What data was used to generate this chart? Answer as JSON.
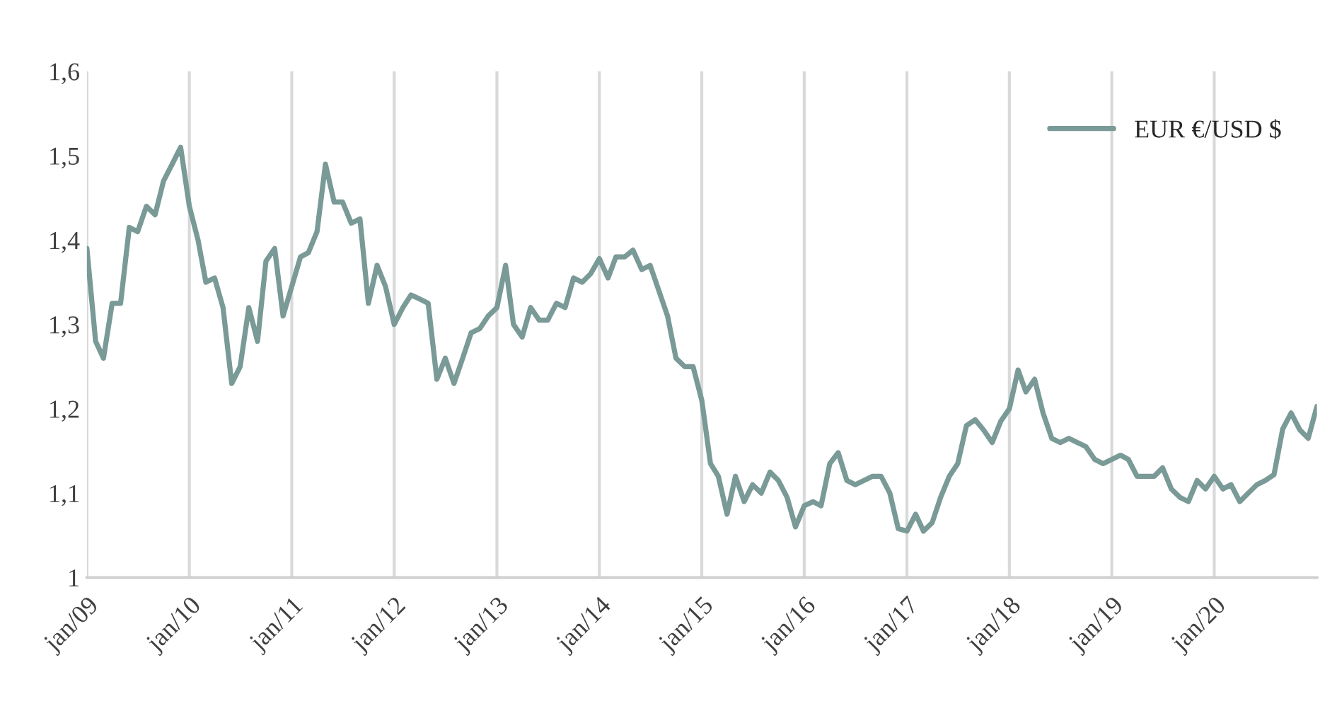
{
  "chart_data": {
    "type": "line",
    "x": [
      "2009-01",
      "2009-02",
      "2009-03",
      "2009-04",
      "2009-05",
      "2009-06",
      "2009-07",
      "2009-08",
      "2009-09",
      "2009-10",
      "2009-11",
      "2009-12",
      "2010-01",
      "2010-02",
      "2010-03",
      "2010-04",
      "2010-05",
      "2010-06",
      "2010-07",
      "2010-08",
      "2010-09",
      "2010-10",
      "2010-11",
      "2010-12",
      "2011-01",
      "2011-02",
      "2011-03",
      "2011-04",
      "2011-05",
      "2011-06",
      "2011-07",
      "2011-08",
      "2011-09",
      "2011-10",
      "2011-11",
      "2011-12",
      "2012-01",
      "2012-02",
      "2012-03",
      "2012-04",
      "2012-05",
      "2012-06",
      "2012-07",
      "2012-08",
      "2012-09",
      "2012-10",
      "2012-11",
      "2012-12",
      "2013-01",
      "2013-02",
      "2013-03",
      "2013-04",
      "2013-05",
      "2013-06",
      "2013-07",
      "2013-08",
      "2013-09",
      "2013-10",
      "2013-11",
      "2013-12",
      "2014-01",
      "2014-02",
      "2014-03",
      "2014-04",
      "2014-05",
      "2014-06",
      "2014-07",
      "2014-08",
      "2014-09",
      "2014-10",
      "2014-11",
      "2014-12",
      "2015-01",
      "2015-02",
      "2015-03",
      "2015-04",
      "2015-05",
      "2015-06",
      "2015-07",
      "2015-08",
      "2015-09",
      "2015-10",
      "2015-11",
      "2015-12",
      "2016-01",
      "2016-02",
      "2016-03",
      "2016-04",
      "2016-05",
      "2016-06",
      "2016-07",
      "2016-08",
      "2016-09",
      "2016-10",
      "2016-11",
      "2016-12",
      "2017-01",
      "2017-02",
      "2017-03",
      "2017-04",
      "2017-05",
      "2017-06",
      "2017-07",
      "2017-08",
      "2017-09",
      "2017-10",
      "2017-11",
      "2017-12",
      "2018-01",
      "2018-02",
      "2018-03",
      "2018-04",
      "2018-05",
      "2018-06",
      "2018-07",
      "2018-08",
      "2018-09",
      "2018-10",
      "2018-11",
      "2018-12",
      "2019-01",
      "2019-02",
      "2019-03",
      "2019-04",
      "2019-05",
      "2019-06",
      "2019-07",
      "2019-08",
      "2019-09",
      "2019-10",
      "2019-11",
      "2019-12",
      "2020-01",
      "2020-02",
      "2020-03",
      "2020-04",
      "2020-05",
      "2020-06",
      "2020-07",
      "2020-08",
      "2020-09",
      "2020-10",
      "2020-11",
      "2020-12",
      "2021-01"
    ],
    "series": [
      {
        "name": "EUR €/USD $",
        "color": "#7a9a97",
        "values": [
          1.39,
          1.28,
          1.26,
          1.325,
          1.325,
          1.415,
          1.41,
          1.44,
          1.43,
          1.47,
          1.49,
          1.51,
          1.44,
          1.4,
          1.35,
          1.355,
          1.32,
          1.23,
          1.25,
          1.32,
          1.28,
          1.375,
          1.39,
          1.31,
          1.345,
          1.38,
          1.385,
          1.41,
          1.49,
          1.445,
          1.445,
          1.42,
          1.425,
          1.325,
          1.37,
          1.345,
          1.3,
          1.32,
          1.335,
          1.33,
          1.325,
          1.235,
          1.26,
          1.23,
          1.26,
          1.29,
          1.295,
          1.31,
          1.32,
          1.37,
          1.3,
          1.285,
          1.32,
          1.305,
          1.305,
          1.325,
          1.32,
          1.355,
          1.35,
          1.36,
          1.378,
          1.355,
          1.38,
          1.38,
          1.388,
          1.365,
          1.37,
          1.34,
          1.31,
          1.26,
          1.25,
          1.25,
          1.21,
          1.135,
          1.12,
          1.075,
          1.12,
          1.09,
          1.11,
          1.1,
          1.125,
          1.115,
          1.095,
          1.06,
          1.085,
          1.09,
          1.085,
          1.135,
          1.148,
          1.115,
          1.11,
          1.115,
          1.12,
          1.12,
          1.1,
          1.058,
          1.055,
          1.075,
          1.055,
          1.065,
          1.095,
          1.12,
          1.135,
          1.18,
          1.187,
          1.175,
          1.16,
          1.185,
          1.2,
          1.246,
          1.22,
          1.235,
          1.195,
          1.165,
          1.16,
          1.165,
          1.16,
          1.155,
          1.14,
          1.135,
          1.14,
          1.145,
          1.14,
          1.12,
          1.12,
          1.12,
          1.13,
          1.105,
          1.095,
          1.09,
          1.115,
          1.105,
          1.12,
          1.105,
          1.11,
          1.09,
          1.1,
          1.11,
          1.115,
          1.122,
          1.176,
          1.195,
          1.175,
          1.165,
          1.203
        ]
      }
    ],
    "xlim": [
      "2009-01",
      "2021-01"
    ],
    "xticks": [
      {
        "value": "2009-01",
        "label": "jan/09"
      },
      {
        "value": "2010-01",
        "label": "jan/10"
      },
      {
        "value": "2011-01",
        "label": "jan/11"
      },
      {
        "value": "2012-01",
        "label": "jan/12"
      },
      {
        "value": "2013-01",
        "label": "jan/13"
      },
      {
        "value": "2014-01",
        "label": "jan/14"
      },
      {
        "value": "2015-01",
        "label": "jan/15"
      },
      {
        "value": "2016-01",
        "label": "jan/16"
      },
      {
        "value": "2017-01",
        "label": "jan/17"
      },
      {
        "value": "2018-01",
        "label": "jan/18"
      },
      {
        "value": "2019-01",
        "label": "jan/19"
      },
      {
        "value": "2020-01",
        "label": "jan/20"
      }
    ],
    "ylim": [
      1,
      1.6
    ],
    "yticks": [
      1,
      {
        "value": 1.1,
        "label": "1,1"
      },
      {
        "value": 1.2,
        "label": "1,2"
      },
      {
        "value": 1.3,
        "label": "1,3"
      },
      {
        "value": 1.4,
        "label": "1,4"
      },
      {
        "value": 1.5,
        "label": "1,5"
      },
      {
        "value": 1.6,
        "label": "1,6"
      }
    ],
    "grid": "x",
    "legend": "top right",
    "line_style": "solid",
    "marker": "none"
  }
}
